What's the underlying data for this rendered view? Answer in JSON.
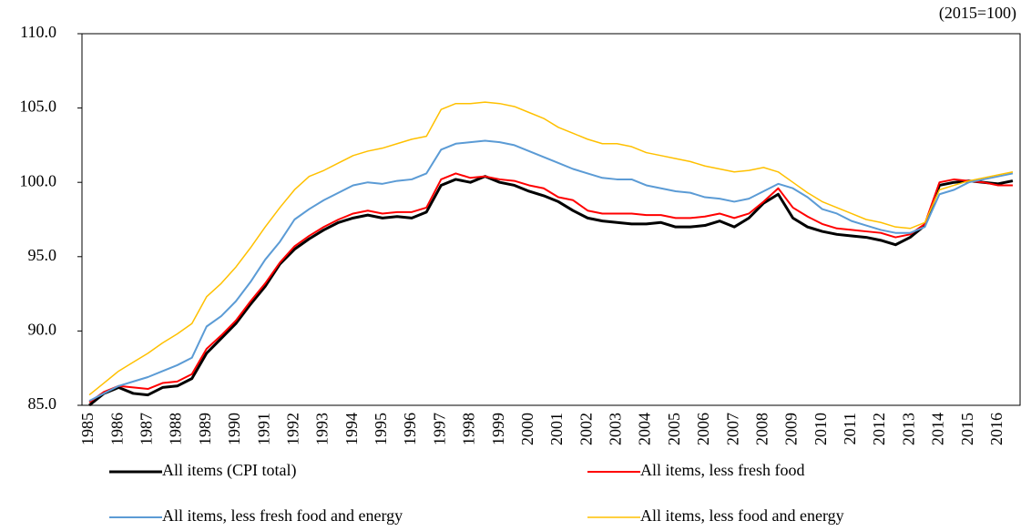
{
  "chart_data": {
    "type": "line",
    "annotation": "(2015=100)",
    "categories": [
      "1985",
      null,
      "1986",
      null,
      "1987",
      null,
      "1988",
      null,
      "1989",
      null,
      "1990",
      null,
      "1991",
      null,
      "1992",
      null,
      "1993",
      null,
      "1994",
      null,
      "1995",
      null,
      "1996",
      null,
      "1997",
      null,
      "1998",
      null,
      "1999",
      null,
      "2000",
      null,
      "2001",
      null,
      "2002",
      null,
      "2003",
      null,
      "2004",
      null,
      "2005",
      null,
      "2006",
      null,
      "2007",
      null,
      "2008",
      null,
      "2009",
      null,
      "2010",
      null,
      "2011",
      null,
      "2012",
      null,
      "2013",
      null,
      "2014",
      null,
      "2015",
      null,
      "2016",
      null
    ],
    "series": [
      {
        "name": "All items (CPI total)",
        "color": "#000000",
        "width": 3,
        "values": [
          85.0,
          85.8,
          86.2,
          85.8,
          85.7,
          86.2,
          86.3,
          86.8,
          88.5,
          89.5,
          90.5,
          91.8,
          93.0,
          94.5,
          95.5,
          96.2,
          96.8,
          97.3,
          97.6,
          97.8,
          97.6,
          97.7,
          97.6,
          98.0,
          99.8,
          100.2,
          100.0,
          100.4,
          100.0,
          99.8,
          99.4,
          99.1,
          98.7,
          98.1,
          97.6,
          97.4,
          97.3,
          97.2,
          97.2,
          97.3,
          97.0,
          97.0,
          97.1,
          97.4,
          97.0,
          97.6,
          98.6,
          99.2,
          97.6,
          97.0,
          96.7,
          96.5,
          96.4,
          96.3,
          96.1,
          95.8,
          96.3,
          97.1,
          99.8,
          100.0,
          100.1,
          100.0,
          99.9,
          100.1
        ]
      },
      {
        "name": "All items, less fresh food",
        "color": "#ff0000",
        "width": 2,
        "values": [
          85.2,
          85.9,
          86.3,
          86.2,
          86.1,
          86.5,
          86.6,
          87.1,
          88.8,
          89.7,
          90.7,
          92.0,
          93.2,
          94.6,
          95.7,
          96.4,
          97.0,
          97.5,
          97.9,
          98.1,
          97.9,
          98.0,
          98.0,
          98.3,
          100.2,
          100.6,
          100.3,
          100.4,
          100.2,
          100.1,
          99.8,
          99.6,
          99.0,
          98.8,
          98.1,
          97.9,
          97.9,
          97.9,
          97.8,
          97.8,
          97.6,
          97.6,
          97.7,
          97.9,
          97.6,
          97.9,
          98.7,
          99.6,
          98.3,
          97.7,
          97.2,
          96.9,
          96.8,
          96.7,
          96.6,
          96.3,
          96.5,
          97.2,
          100.0,
          100.2,
          100.1,
          100.0,
          99.8,
          99.8
        ]
      },
      {
        "name": "All items, less fresh food and energy",
        "color": "#5b9bd5",
        "width": 2,
        "values": [
          85.3,
          85.8,
          86.3,
          86.6,
          86.9,
          87.3,
          87.7,
          88.2,
          90.3,
          91.0,
          92.0,
          93.3,
          94.8,
          96.0,
          97.5,
          98.2,
          98.8,
          99.3,
          99.8,
          100.0,
          99.9,
          100.1,
          100.2,
          100.6,
          102.2,
          102.6,
          102.7,
          102.8,
          102.7,
          102.5,
          102.1,
          101.7,
          101.3,
          100.9,
          100.6,
          100.3,
          100.2,
          100.2,
          99.8,
          99.6,
          99.4,
          99.3,
          99.0,
          98.9,
          98.7,
          98.9,
          99.4,
          99.9,
          99.6,
          99.0,
          98.2,
          97.9,
          97.4,
          97.1,
          96.8,
          96.6,
          96.6,
          97.0,
          99.2,
          99.5,
          100.0,
          100.2,
          100.4,
          100.6
        ]
      },
      {
        "name": "All items, less food and energy",
        "color": "#ffc000",
        "width": 1.5,
        "values": [
          85.7,
          86.5,
          87.3,
          87.9,
          88.5,
          89.2,
          89.8,
          90.5,
          92.3,
          93.2,
          94.3,
          95.6,
          97.0,
          98.3,
          99.5,
          100.4,
          100.8,
          101.3,
          101.8,
          102.1,
          102.3,
          102.6,
          102.9,
          103.1,
          104.9,
          105.3,
          105.3,
          105.4,
          105.3,
          105.1,
          104.7,
          104.3,
          103.7,
          103.3,
          102.9,
          102.6,
          102.6,
          102.4,
          102.0,
          101.8,
          101.6,
          101.4,
          101.1,
          100.9,
          100.7,
          100.8,
          101.0,
          100.7,
          100.0,
          99.3,
          98.7,
          98.3,
          97.9,
          97.5,
          97.3,
          97.0,
          96.9,
          97.3,
          99.5,
          99.8,
          100.1,
          100.3,
          100.5,
          100.7
        ]
      }
    ],
    "ylim": [
      85,
      110
    ],
    "yticks": [
      {
        "value": 85,
        "label": "85.0"
      },
      {
        "value": 90,
        "label": "90.0"
      },
      {
        "value": 95,
        "label": "95.0"
      },
      {
        "value": 100,
        "label": "100.0"
      },
      {
        "value": 105,
        "label": "105.0"
      },
      {
        "value": 110,
        "label": "110.0"
      }
    ],
    "grid": false
  }
}
